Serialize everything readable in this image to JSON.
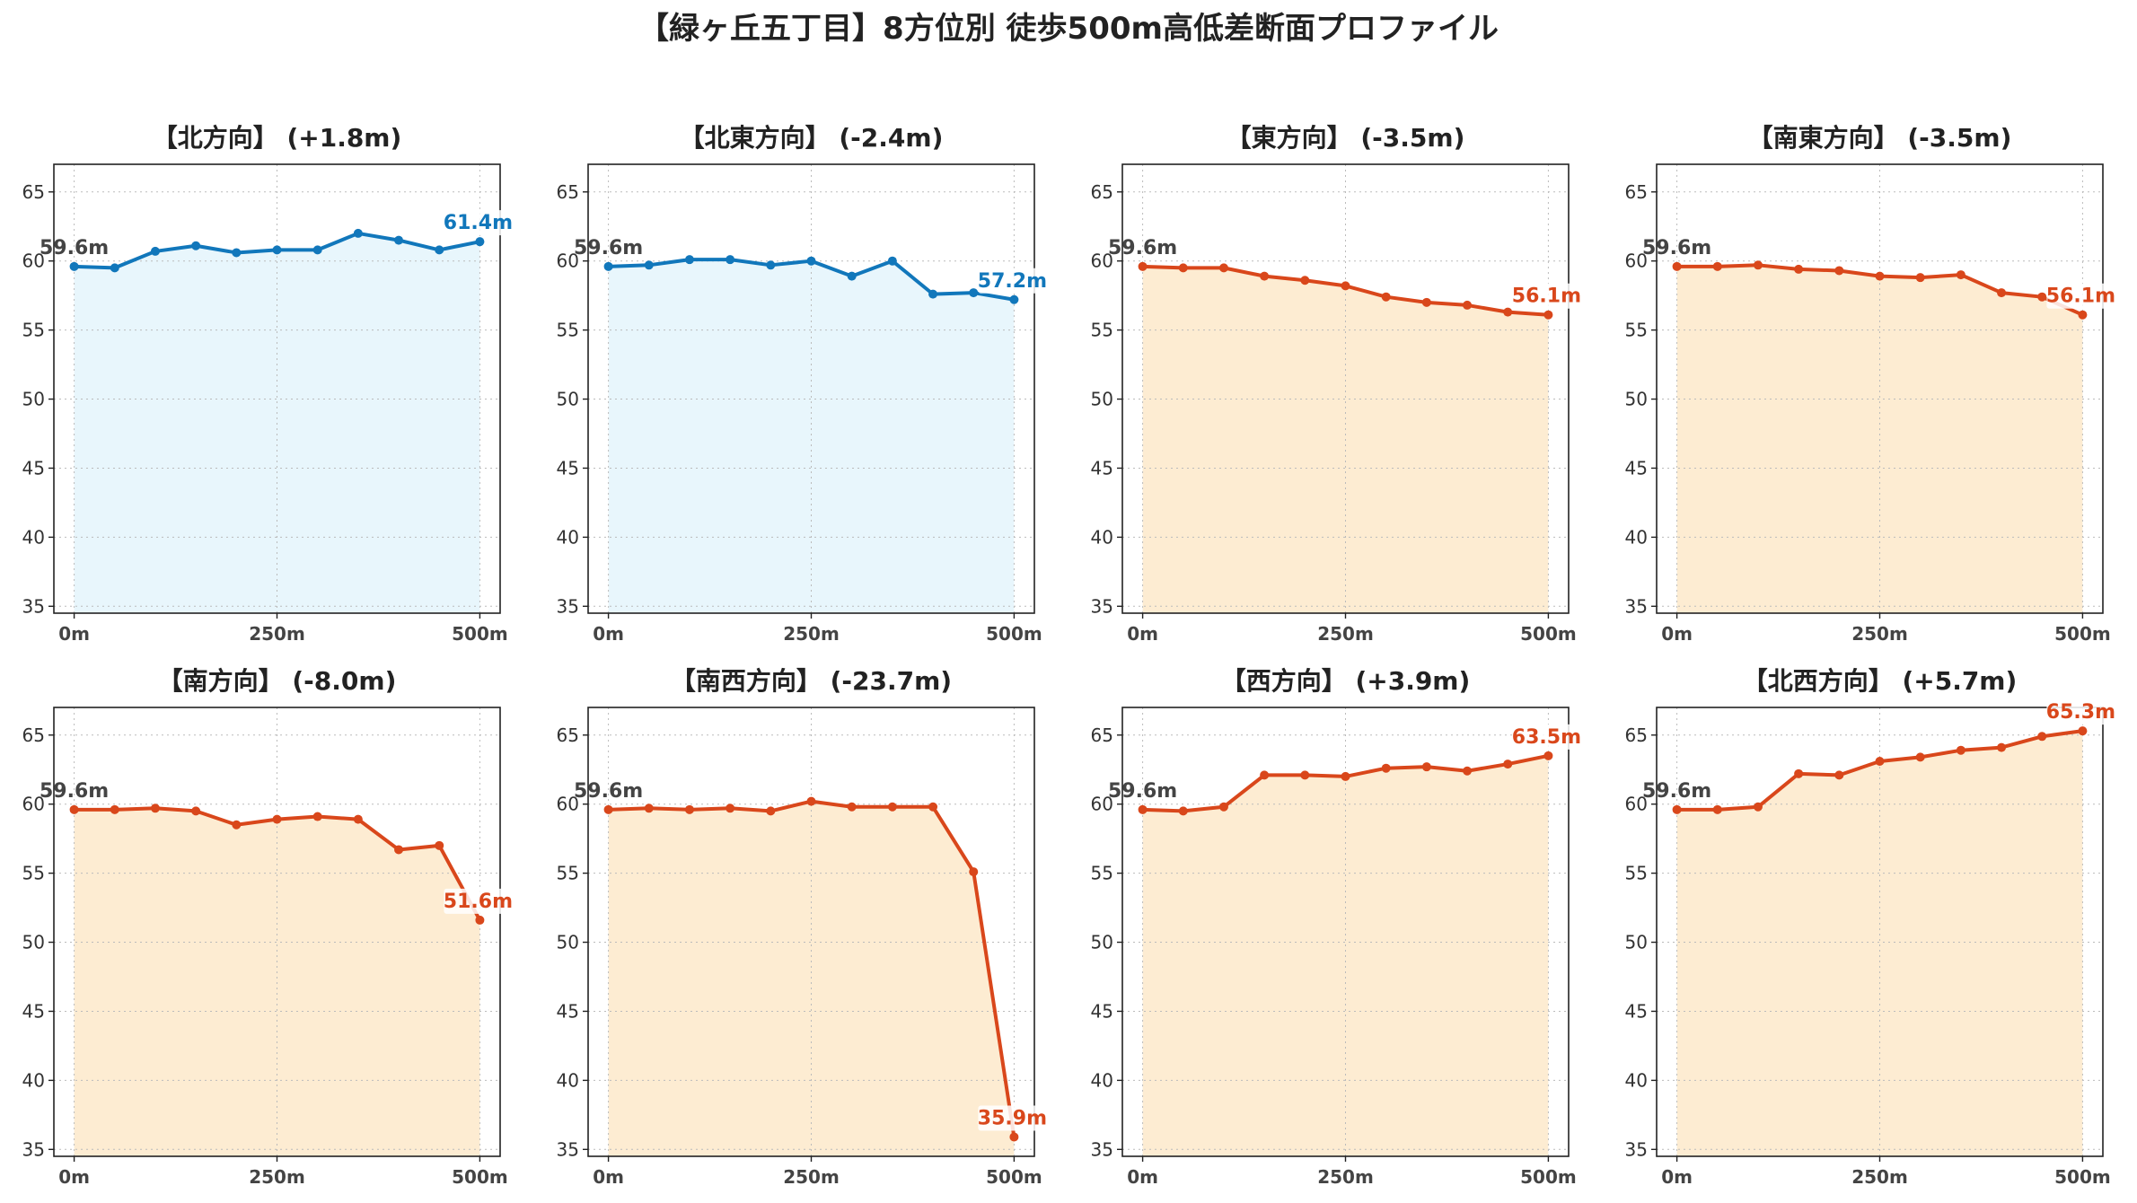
{
  "suptitle": "【緑ヶ丘五丁目】8方位別 徒歩500m高低差断面プロファイル",
  "colors": {
    "up_line": "#1177bb",
    "up_fill": "#e8f6fc",
    "down_line": "#d9471b",
    "down_fill": "#fdecd2",
    "grid": "#bbbbbb",
    "start_label": "#444444"
  },
  "chart_data": [
    {
      "type": "area",
      "title": "【北方向】 (+1.8m)",
      "trend": "up",
      "start_label": "59.6m",
      "end_label": "61.4m",
      "x": [
        0,
        50,
        100,
        150,
        200,
        250,
        300,
        350,
        400,
        450,
        500
      ],
      "y": [
        59.6,
        59.5,
        60.7,
        61.1,
        60.6,
        60.8,
        60.8,
        62.0,
        61.5,
        60.8,
        61.4
      ],
      "xticks": [
        "0m",
        "250m",
        "500m"
      ],
      "yticks": [
        35,
        40,
        45,
        50,
        55,
        60,
        65
      ],
      "ylim": [
        34.5,
        67
      ],
      "xlim": [
        -25,
        525
      ],
      "grid": true
    },
    {
      "type": "area",
      "title": "【北東方向】 (-2.4m)",
      "trend": "up",
      "start_label": "59.6m",
      "end_label": "57.2m",
      "x": [
        0,
        50,
        100,
        150,
        200,
        250,
        300,
        350,
        400,
        450,
        500
      ],
      "y": [
        59.6,
        59.7,
        60.1,
        60.1,
        59.7,
        60.0,
        58.9,
        60.0,
        57.6,
        57.7,
        57.2
      ],
      "xticks": [
        "0m",
        "250m",
        "500m"
      ],
      "yticks": [
        35,
        40,
        45,
        50,
        55,
        60,
        65
      ],
      "ylim": [
        34.5,
        67
      ],
      "xlim": [
        -25,
        525
      ],
      "grid": true
    },
    {
      "type": "area",
      "title": "【東方向】 (-3.5m)",
      "trend": "down",
      "start_label": "59.6m",
      "end_label": "56.1m",
      "x": [
        0,
        50,
        100,
        150,
        200,
        250,
        300,
        350,
        400,
        450,
        500
      ],
      "y": [
        59.6,
        59.5,
        59.5,
        58.9,
        58.6,
        58.2,
        57.4,
        57.0,
        56.8,
        56.3,
        56.1
      ],
      "xticks": [
        "0m",
        "250m",
        "500m"
      ],
      "yticks": [
        35,
        40,
        45,
        50,
        55,
        60,
        65
      ],
      "ylim": [
        34.5,
        67
      ],
      "xlim": [
        -25,
        525
      ],
      "grid": true
    },
    {
      "type": "area",
      "title": "【南東方向】 (-3.5m)",
      "trend": "down",
      "start_label": "59.6m",
      "end_label": "56.1m",
      "x": [
        0,
        50,
        100,
        150,
        200,
        250,
        300,
        350,
        400,
        450,
        500
      ],
      "y": [
        59.6,
        59.6,
        59.7,
        59.4,
        59.3,
        58.9,
        58.8,
        59.0,
        57.7,
        57.4,
        56.1
      ],
      "xticks": [
        "0m",
        "250m",
        "500m"
      ],
      "yticks": [
        35,
        40,
        45,
        50,
        55,
        60,
        65
      ],
      "ylim": [
        34.5,
        67
      ],
      "xlim": [
        -25,
        525
      ],
      "grid": true
    },
    {
      "type": "area",
      "title": "【南方向】 (-8.0m)",
      "trend": "down",
      "start_label": "59.6m",
      "end_label": "51.6m",
      "x": [
        0,
        50,
        100,
        150,
        200,
        250,
        300,
        350,
        400,
        450,
        500
      ],
      "y": [
        59.6,
        59.6,
        59.7,
        59.5,
        58.5,
        58.9,
        59.1,
        58.9,
        56.7,
        57.0,
        51.6
      ],
      "xticks": [
        "0m",
        "250m",
        "500m"
      ],
      "yticks": [
        35,
        40,
        45,
        50,
        55,
        60,
        65
      ],
      "ylim": [
        34.5,
        67
      ],
      "xlim": [
        -25,
        525
      ],
      "grid": true
    },
    {
      "type": "area",
      "title": "【南西方向】 (-23.7m)",
      "trend": "down",
      "start_label": "59.6m",
      "end_label": "35.9m",
      "x": [
        0,
        50,
        100,
        150,
        200,
        250,
        300,
        350,
        400,
        450,
        500
      ],
      "y": [
        59.6,
        59.7,
        59.6,
        59.7,
        59.5,
        60.2,
        59.8,
        59.8,
        59.8,
        55.1,
        35.9
      ],
      "xticks": [
        "0m",
        "250m",
        "500m"
      ],
      "yticks": [
        35,
        40,
        45,
        50,
        55,
        60,
        65
      ],
      "ylim": [
        34.5,
        67
      ],
      "xlim": [
        -25,
        525
      ],
      "grid": true
    },
    {
      "type": "area",
      "title": "【西方向】 (+3.9m)",
      "trend": "down",
      "start_label": "59.6m",
      "end_label": "63.5m",
      "x": [
        0,
        50,
        100,
        150,
        200,
        250,
        300,
        350,
        400,
        450,
        500
      ],
      "y": [
        59.6,
        59.5,
        59.8,
        62.1,
        62.1,
        62.0,
        62.6,
        62.7,
        62.4,
        62.9,
        63.5
      ],
      "xticks": [
        "0m",
        "250m",
        "500m"
      ],
      "yticks": [
        35,
        40,
        45,
        50,
        55,
        60,
        65
      ],
      "ylim": [
        34.5,
        67
      ],
      "xlim": [
        -25,
        525
      ],
      "grid": true
    },
    {
      "type": "area",
      "title": "【北西方向】 (+5.7m)",
      "trend": "down",
      "start_label": "59.6m",
      "end_label": "65.3m",
      "x": [
        0,
        50,
        100,
        150,
        200,
        250,
        300,
        350,
        400,
        450,
        500
      ],
      "y": [
        59.6,
        59.6,
        59.8,
        62.2,
        62.1,
        63.1,
        63.4,
        63.9,
        64.1,
        64.9,
        65.3
      ],
      "xticks": [
        "0m",
        "250m",
        "500m"
      ],
      "yticks": [
        35,
        40,
        45,
        50,
        55,
        60,
        65
      ],
      "ylim": [
        34.5,
        67
      ],
      "xlim": [
        -25,
        525
      ],
      "grid": true
    }
  ]
}
